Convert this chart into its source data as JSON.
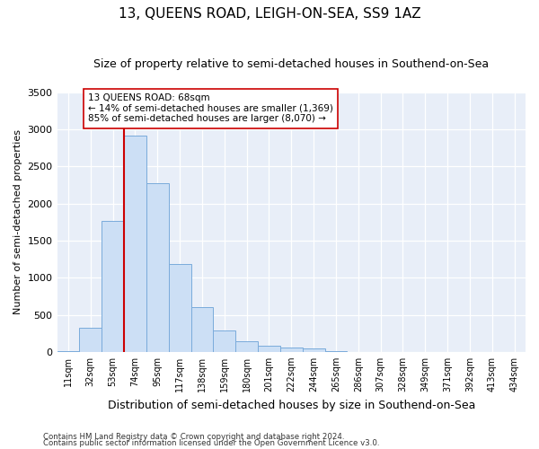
{
  "title": "13, QUEENS ROAD, LEIGH-ON-SEA, SS9 1AZ",
  "subtitle": "Size of property relative to semi-detached houses in Southend-on-Sea",
  "xlabel": "Distribution of semi-detached houses by size in Southend-on-Sea",
  "ylabel": "Number of semi-detached properties",
  "footnote1": "Contains HM Land Registry data © Crown copyright and database right 2024.",
  "footnote2": "Contains public sector information licensed under the Open Government Licence v3.0.",
  "bar_labels": [
    "11sqm",
    "32sqm",
    "53sqm",
    "74sqm",
    "95sqm",
    "117sqm",
    "138sqm",
    "159sqm",
    "180sqm",
    "201sqm",
    "222sqm",
    "244sqm",
    "265sqm",
    "286sqm",
    "307sqm",
    "328sqm",
    "349sqm",
    "371sqm",
    "392sqm",
    "413sqm",
    "434sqm"
  ],
  "bar_values": [
    10,
    320,
    1760,
    2920,
    2280,
    1180,
    600,
    290,
    145,
    80,
    55,
    45,
    10,
    0,
    0,
    0,
    0,
    0,
    0,
    0,
    0
  ],
  "bar_color": "#ccdff5",
  "bar_edge_color": "#7aabdb",
  "property_label": "13 QUEENS ROAD: 68sqm",
  "pct_smaller": 14,
  "n_smaller": 1369,
  "pct_larger": 85,
  "n_larger": 8070,
  "vline_color": "#cc0000",
  "vline_x_bin": 3,
  "annotation_box_color": "#cc0000",
  "ylim": [
    0,
    3500
  ],
  "yticks": [
    0,
    500,
    1000,
    1500,
    2000,
    2500,
    3000,
    3500
  ],
  "plot_bg_color": "#e8eef8",
  "title_fontsize": 11,
  "subtitle_fontsize": 9,
  "xlabel_fontsize": 9,
  "ylabel_fontsize": 8
}
